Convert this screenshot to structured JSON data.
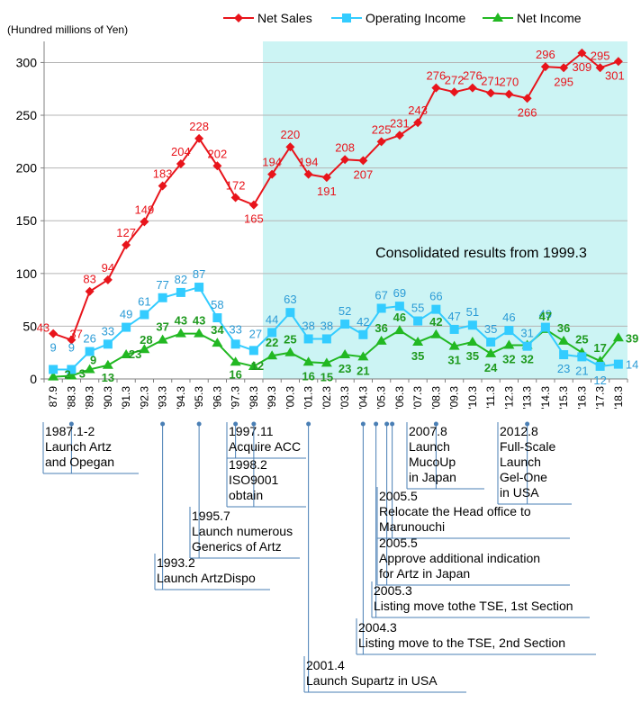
{
  "chart_data": {
    "type": "line",
    "unit_label": "(Hundred  millions of Yen)",
    "ylim": [
      0,
      320
    ],
    "yticks": [
      0,
      50,
      100,
      150,
      200,
      250,
      300
    ],
    "grid": true,
    "legend_position": "top",
    "categories": [
      "87.9",
      "'88.3",
      "'89.3",
      "'90.3",
      "'91.3",
      "'92.3",
      "'93.3",
      "'94.3",
      "'95.3",
      "'96.3",
      "'97.3",
      "'98.3",
      "'99.3",
      "'00.3",
      "'01.3",
      "'02.3",
      "'03.3",
      "'04.3",
      "'05.3",
      "'06.3",
      "'07.3",
      "'08.3",
      "'09.3",
      "'10.3",
      "'11.3",
      "'12.3",
      "'13.3",
      "'14.3",
      "'15.3",
      "'16.3",
      "'17.3",
      "'18.3"
    ],
    "series": [
      {
        "name": "Net Sales",
        "color": "#e8141b",
        "marker": "diamond",
        "values": [
          43,
          37,
          83,
          94,
          127,
          149,
          183,
          204,
          228,
          202,
          172,
          165,
          194,
          220,
          194,
          191,
          208,
          207,
          225,
          231,
          243,
          276,
          272,
          276,
          271,
          270,
          266,
          296,
          295,
          309,
          295,
          301
        ]
      },
      {
        "name": "Operating Income",
        "color": "#33ccff",
        "marker": "square",
        "values": [
          9,
          9,
          26,
          33,
          49,
          61,
          77,
          82,
          87,
          58,
          33,
          27,
          44,
          63,
          38,
          38,
          52,
          42,
          67,
          69,
          55,
          66,
          47,
          51,
          35,
          46,
          31,
          49,
          23,
          21,
          12,
          14
        ]
      },
      {
        "name": "Net Income",
        "color": "#22b822",
        "marker": "triangle",
        "values": [
          2,
          3,
          9,
          13,
          23,
          28,
          37,
          43,
          43,
          34,
          16,
          12,
          22,
          25,
          16,
          15,
          23,
          21,
          36,
          46,
          35,
          42,
          31,
          35,
          24,
          32,
          32,
          47,
          36,
          25,
          17,
          39
        ]
      }
    ],
    "shaded_region": {
      "from": "'99.3",
      "to": "'18.3",
      "label": "Consolidated results from 1999.3",
      "color": "#ccf4f4"
    },
    "annotations": [
      {
        "category": "'88.3",
        "lines": [
          "1987.1-2",
          "Launch Artz",
          "  and   Opegan"
        ]
      },
      {
        "category": "'93.3",
        "lines": [
          "1993.2",
          "Launch ArtzDispo"
        ]
      },
      {
        "category": "'95.3",
        "lines": [
          "1995.7",
          "Launch  numerous",
          "Generics of Artz"
        ]
      },
      {
        "category": "'97.3",
        "lines": [
          "1997.11",
          "Acquire ACC"
        ]
      },
      {
        "category": "'98.3",
        "lines": [
          "1998.2",
          "ISO9001",
          "obtain"
        ]
      },
      {
        "category": "'01.3",
        "lines": [
          "2001.4",
          "Launch  Supartz in USA"
        ]
      },
      {
        "category": "'04.3",
        "lines": [
          "2004.3",
          "Listing move to the TSE, 2nd Section"
        ]
      },
      {
        "category": "'05.3",
        "lines": [
          "2005.3",
          "Listing move tothe TSE, 1st  Section"
        ]
      },
      {
        "category": "'05.3",
        "lines": [
          "2005.5",
          "Approve additional indication",
          "for Artz in Japan"
        ]
      },
      {
        "category": "'05.3",
        "lines": [
          "2005.5",
          "Relocate the Head office to",
          "Marunouchi"
        ]
      },
      {
        "category": "'08.3",
        "lines": [
          "2007.8",
          "Launch",
          "MucoUp",
          "  in Japan"
        ]
      },
      {
        "category": "'13.3",
        "lines": [
          "2012.8",
          "Full-Scale",
          "Launch",
          "Gel-One",
          "  in USA"
        ]
      }
    ]
  }
}
